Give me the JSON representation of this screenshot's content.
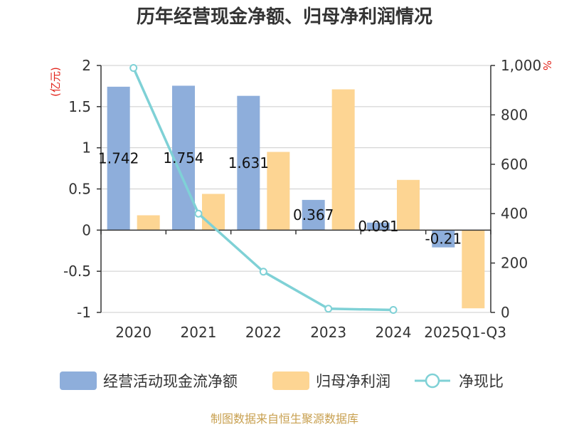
{
  "chart_data": {
    "type": "bar",
    "title": "历年经营现金净额、归母净利润情况",
    "categories": [
      "2020",
      "2021",
      "2022",
      "2023",
      "2024",
      "2025Q1-Q3"
    ],
    "left_unit": "(亿元)",
    "right_unit": "%",
    "left_ylim": [
      -1,
      2
    ],
    "left_ticks": [
      "2",
      "1.5",
      "1",
      "0.5",
      "0",
      "-0.5",
      "-1"
    ],
    "right_ylim": [
      0,
      1000
    ],
    "right_ticks": [
      "1,000",
      "800",
      "600",
      "400",
      "200",
      "0"
    ],
    "grid": true,
    "legend_position": "bottom",
    "series": [
      {
        "name": "经营活动现金流净额",
        "kind": "bar",
        "axis": "left",
        "color": "#8eaedb",
        "values": [
          1.742,
          1.754,
          1.631,
          0.367,
          0.091,
          -0.21
        ],
        "labels": [
          "1.742",
          "1.754",
          "1.631",
          "0.367",
          "0.091",
          "-0.21"
        ]
      },
      {
        "name": "归母净利润",
        "kind": "bar",
        "axis": "left",
        "color": "#fdd593",
        "values": [
          0.18,
          0.44,
          0.95,
          1.71,
          0.61,
          -0.95
        ]
      },
      {
        "name": "净现比",
        "kind": "line",
        "axis": "right",
        "color": "#7fd1d6",
        "values": [
          990,
          400,
          165,
          15,
          10,
          null
        ]
      }
    ],
    "source": "制图数据来自恒生聚源数据库"
  }
}
